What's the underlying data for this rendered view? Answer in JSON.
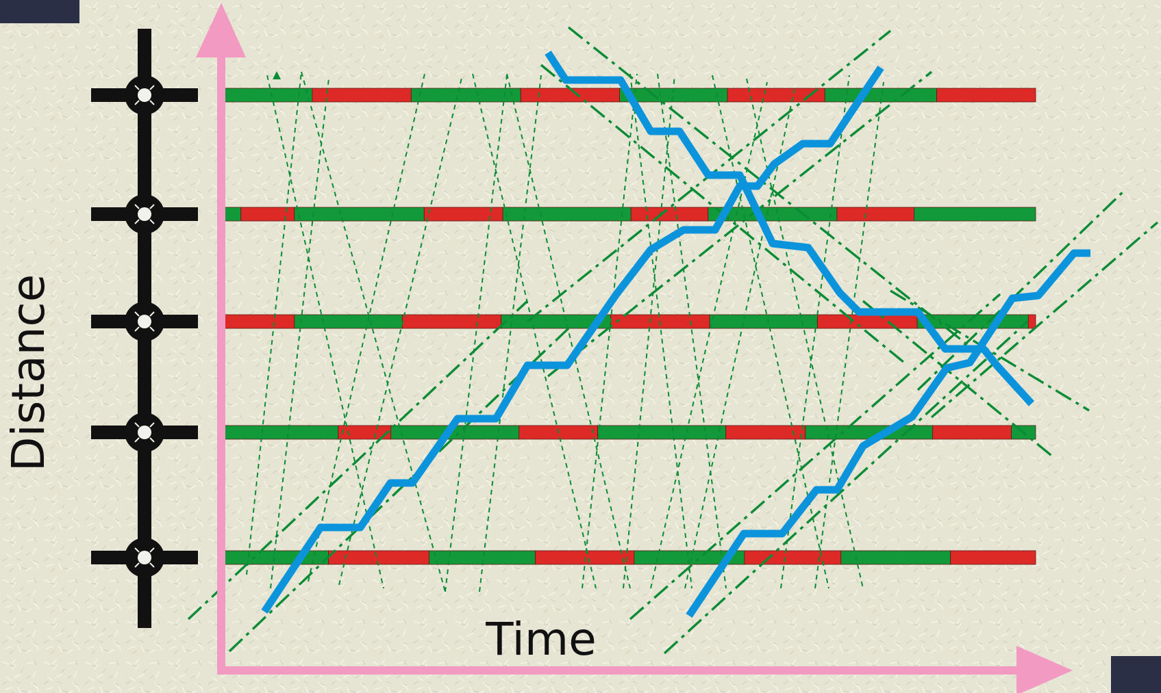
{
  "labels": {
    "x_axis": "Time",
    "y_axis": "Distance"
  },
  "footer": {
    "date_text": ""
  },
  "colors": {
    "background": "#e6e4d2",
    "axis": "#f29ac2",
    "green_phase": "#129a3a",
    "red_phase": "#de2a26",
    "vehicle_path": "#0b94dc",
    "band_line": "#0a8c36",
    "intersection": "#111111",
    "corner_block": "#2b2f45"
  },
  "icons": [
    "intersection-icon",
    "axis-arrow-icon"
  ],
  "intersections": [
    {
      "id": "int-1",
      "signal": [
        [
          "G",
          0.0,
          0.108
        ],
        [
          "R",
          0.108,
          0.23
        ],
        [
          "G",
          0.23,
          0.365
        ],
        [
          "R",
          0.365,
          0.487
        ],
        [
          "G",
          0.487,
          0.62
        ],
        [
          "R",
          0.62,
          0.74
        ],
        [
          "G",
          0.74,
          0.878
        ],
        [
          "R",
          0.878,
          1.0
        ]
      ]
    },
    {
      "id": "int-2",
      "signal": [
        [
          "G",
          0.0,
          0.02
        ],
        [
          "R",
          0.02,
          0.086
        ],
        [
          "G",
          0.086,
          0.246
        ],
        [
          "R",
          0.246,
          0.343
        ],
        [
          "G",
          0.343,
          0.501
        ],
        [
          "R",
          0.501,
          0.596
        ],
        [
          "G",
          0.596,
          0.755
        ],
        [
          "R",
          0.755,
          0.85
        ],
        [
          "G",
          0.85,
          1.0
        ]
      ]
    },
    {
      "id": "int-3",
      "signal": [
        [
          "R",
          0.0,
          0.086
        ],
        [
          "G",
          0.086,
          0.219
        ],
        [
          "R",
          0.219,
          0.341
        ],
        [
          "G",
          0.341,
          0.476
        ],
        [
          "R",
          0.476,
          0.598
        ],
        [
          "G",
          0.598,
          0.731
        ],
        [
          "R",
          0.731,
          0.854
        ],
        [
          "G",
          0.854,
          0.991
        ],
        [
          "R",
          0.991,
          1.0
        ]
      ]
    },
    {
      "id": "int-4",
      "signal": [
        [
          "G",
          0.0,
          0.14
        ],
        [
          "R",
          0.14,
          0.205
        ],
        [
          "G",
          0.205,
          0.363
        ],
        [
          "R",
          0.363,
          0.46
        ],
        [
          "G",
          0.46,
          0.618
        ],
        [
          "R",
          0.618,
          0.716
        ],
        [
          "G",
          0.716,
          0.873
        ],
        [
          "R",
          0.873,
          0.97
        ],
        [
          "G",
          0.97,
          1.0
        ]
      ]
    },
    {
      "id": "int-5",
      "signal": [
        [
          "G",
          0.0,
          0.128
        ],
        [
          "R",
          0.128,
          0.252
        ],
        [
          "G",
          0.252,
          0.383
        ],
        [
          "R",
          0.383,
          0.505
        ],
        [
          "G",
          0.505,
          0.641
        ],
        [
          "R",
          0.641,
          0.76
        ],
        [
          "G",
          0.76,
          0.895
        ],
        [
          "R",
          0.895,
          1.0
        ]
      ]
    }
  ]
}
